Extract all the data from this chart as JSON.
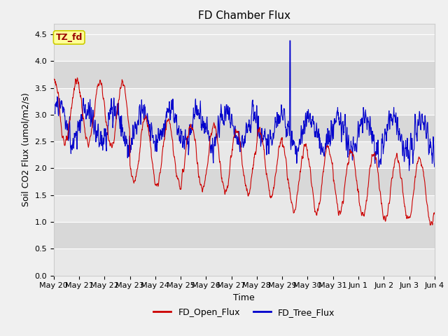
{
  "title": "FD Chamber Flux",
  "xlabel": "Time",
  "ylabel": "Soil CO2 Flux (umol/m2/s)",
  "ylim": [
    0.0,
    4.7
  ],
  "yticks": [
    0.0,
    0.5,
    1.0,
    1.5,
    2.0,
    2.5,
    3.0,
    3.5,
    4.0,
    4.5
  ],
  "x_tick_labels": [
    "May 20",
    "May 21",
    "May 22",
    "May 23",
    "May 24",
    "May 25",
    "May 26",
    "May 27",
    "May 28",
    "May 29",
    "May 30",
    "May 31",
    "Jun 1",
    "Jun 2",
    "Jun 3",
    "Jun 4"
  ],
  "open_flux_color": "#cc0000",
  "tree_flux_color": "#0000cc",
  "line_width": 0.8,
  "fig_bg_color": "#f0f0f0",
  "plot_bg_color": "#e8e8e8",
  "grid_band_light": "#e8e8e8",
  "grid_band_dark": "#d8d8d8",
  "annotation_text": "TZ_fd",
  "annotation_bg": "#ffff99",
  "annotation_border": "#cccc00",
  "legend_open": "FD_Open_Flux",
  "legend_tree": "FD_Tree_Flux",
  "grid_color": "#ffffff",
  "title_fontsize": 11,
  "label_fontsize": 9,
  "tick_fontsize": 8
}
